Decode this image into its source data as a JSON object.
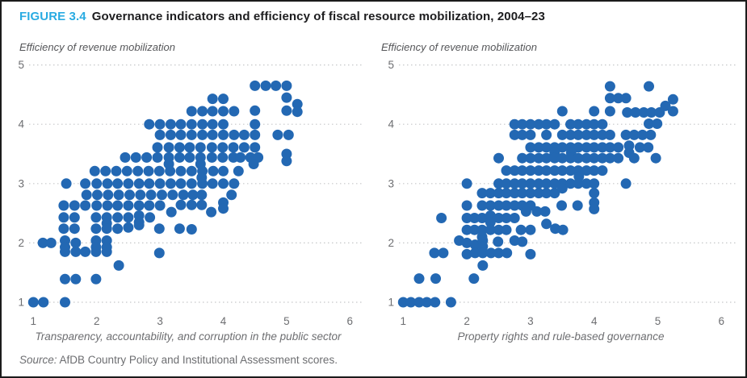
{
  "figure": {
    "label": "FIGURE 3.4",
    "title": "Governance indicators and efficiency of fiscal resource mobilization, 2004–23"
  },
  "source": {
    "prefix": "Source:",
    "text": " AfDB Country Policy and Institutional Assessment scores."
  },
  "colors": {
    "dot": "#2368b3",
    "figure_label": "#29abe2",
    "title_text": "#1d1d1f",
    "axis_text": "#6d6e71",
    "gridline": "#c6c7c9"
  },
  "chart_data": [
    {
      "type": "scatter",
      "ylabel": "Efficiency of revenue mobilization",
      "xlabel": "Transparency, accountability, and corruption in the public sector",
      "xlim": [
        1,
        6
      ],
      "ylim": [
        1,
        5
      ],
      "x_ticks": [
        "1",
        "2",
        "3",
        "4",
        "5",
        "6"
      ],
      "y_ticks": [
        "1",
        "2",
        "3",
        "4",
        "5"
      ],
      "grid": "horizontal-dotted",
      "legend": "none",
      "points": [
        [
          4.5,
          4.65
        ],
        [
          4.67,
          4.65
        ],
        [
          4.83,
          4.65
        ],
        [
          5.0,
          4.65
        ],
        [
          3.83,
          4.43
        ],
        [
          4.0,
          4.43
        ],
        [
          5.0,
          4.45
        ],
        [
          5.17,
          4.34
        ],
        [
          3.5,
          4.22
        ],
        [
          3.67,
          4.22
        ],
        [
          3.83,
          4.22
        ],
        [
          4.0,
          4.22
        ],
        [
          4.17,
          4.22
        ],
        [
          4.5,
          4.23
        ],
        [
          5.0,
          4.23
        ],
        [
          5.17,
          4.21
        ],
        [
          2.83,
          4.0
        ],
        [
          3.0,
          4.0
        ],
        [
          3.17,
          4.0
        ],
        [
          3.33,
          4.0
        ],
        [
          3.5,
          4.0
        ],
        [
          3.67,
          4.0
        ],
        [
          3.83,
          4.0
        ],
        [
          4.0,
          4.0
        ],
        [
          4.5,
          4.0
        ],
        [
          3.0,
          3.82
        ],
        [
          3.17,
          3.82
        ],
        [
          3.33,
          3.82
        ],
        [
          3.5,
          3.82
        ],
        [
          3.67,
          3.82
        ],
        [
          3.83,
          3.82
        ],
        [
          4.0,
          3.82
        ],
        [
          4.17,
          3.82
        ],
        [
          4.33,
          3.82
        ],
        [
          4.5,
          3.82
        ],
        [
          4.86,
          3.82
        ],
        [
          5.03,
          3.82
        ],
        [
          2.96,
          3.61
        ],
        [
          3.14,
          3.61
        ],
        [
          3.31,
          3.61
        ],
        [
          3.47,
          3.61
        ],
        [
          3.64,
          3.61
        ],
        [
          3.82,
          3.61
        ],
        [
          3.99,
          3.61
        ],
        [
          4.16,
          3.61
        ],
        [
          4.33,
          3.61
        ],
        [
          4.5,
          3.61
        ],
        [
          2.45,
          3.44
        ],
        [
          2.62,
          3.44
        ],
        [
          2.79,
          3.44
        ],
        [
          2.96,
          3.44
        ],
        [
          3.14,
          3.44
        ],
        [
          3.31,
          3.44
        ],
        [
          3.47,
          3.44
        ],
        [
          3.64,
          3.44
        ],
        [
          3.82,
          3.44
        ],
        [
          3.99,
          3.44
        ],
        [
          4.16,
          3.44
        ],
        [
          4.27,
          3.44
        ],
        [
          4.43,
          3.44
        ],
        [
          4.55,
          3.44
        ],
        [
          5.0,
          3.5
        ],
        [
          3.14,
          3.33
        ],
        [
          3.64,
          3.33
        ],
        [
          4.48,
          3.33
        ],
        [
          5.0,
          3.38
        ],
        [
          1.97,
          3.21
        ],
        [
          2.14,
          3.21
        ],
        [
          2.31,
          3.21
        ],
        [
          2.48,
          3.21
        ],
        [
          2.65,
          3.21
        ],
        [
          2.82,
          3.21
        ],
        [
          2.99,
          3.21
        ],
        [
          3.16,
          3.21
        ],
        [
          3.33,
          3.21
        ],
        [
          3.5,
          3.21
        ],
        [
          3.67,
          3.21
        ],
        [
          3.84,
          3.21
        ],
        [
          4.0,
          3.21
        ],
        [
          4.24,
          3.21
        ],
        [
          1.52,
          3.0
        ],
        [
          1.82,
          3.0
        ],
        [
          2.0,
          3.0
        ],
        [
          2.17,
          3.0
        ],
        [
          2.33,
          3.0
        ],
        [
          2.5,
          3.0
        ],
        [
          2.67,
          3.0
        ],
        [
          2.83,
          3.0
        ],
        [
          3.0,
          3.0
        ],
        [
          3.17,
          3.0
        ],
        [
          3.33,
          3.0
        ],
        [
          3.5,
          3.0
        ],
        [
          3.67,
          3.0
        ],
        [
          3.83,
          3.0
        ],
        [
          4.0,
          3.0
        ],
        [
          4.17,
          3.0
        ],
        [
          3.66,
          3.1
        ],
        [
          1.84,
          2.81
        ],
        [
          2.01,
          2.81
        ],
        [
          2.18,
          2.81
        ],
        [
          2.35,
          2.81
        ],
        [
          2.52,
          2.81
        ],
        [
          2.69,
          2.81
        ],
        [
          2.86,
          2.81
        ],
        [
          3.03,
          2.81
        ],
        [
          3.2,
          2.81
        ],
        [
          3.37,
          2.81
        ],
        [
          3.52,
          2.81
        ],
        [
          3.66,
          2.81
        ],
        [
          4.13,
          2.81
        ],
        [
          1.48,
          2.63
        ],
        [
          1.65,
          2.63
        ],
        [
          1.82,
          2.63
        ],
        [
          2.0,
          2.63
        ],
        [
          2.17,
          2.63
        ],
        [
          2.33,
          2.63
        ],
        [
          2.5,
          2.63
        ],
        [
          2.67,
          2.63
        ],
        [
          2.83,
          2.63
        ],
        [
          3.0,
          2.63
        ],
        [
          3.33,
          2.64
        ],
        [
          3.5,
          2.64
        ],
        [
          3.66,
          2.64
        ],
        [
          4.0,
          2.68
        ],
        [
          3.18,
          2.52
        ],
        [
          3.81,
          2.52
        ],
        [
          4.0,
          2.58
        ],
        [
          1.48,
          2.43
        ],
        [
          1.65,
          2.43
        ],
        [
          1.99,
          2.43
        ],
        [
          2.16,
          2.43
        ],
        [
          2.33,
          2.43
        ],
        [
          2.5,
          2.43
        ],
        [
          2.67,
          2.46
        ],
        [
          2.84,
          2.43
        ],
        [
          2.67,
          2.35
        ],
        [
          1.48,
          2.24
        ],
        [
          1.65,
          2.24
        ],
        [
          1.99,
          2.24
        ],
        [
          2.16,
          2.33
        ],
        [
          2.16,
          2.24
        ],
        [
          2.33,
          2.24
        ],
        [
          2.5,
          2.26
        ],
        [
          2.67,
          2.3
        ],
        [
          2.99,
          2.24
        ],
        [
          3.31,
          2.24
        ],
        [
          3.5,
          2.23
        ],
        [
          1.15,
          2.0
        ],
        [
          1.28,
          2.0
        ],
        [
          1.5,
          2.04
        ],
        [
          1.67,
          2.0
        ],
        [
          1.99,
          2.04
        ],
        [
          2.16,
          2.04
        ],
        [
          1.5,
          1.93
        ],
        [
          1.99,
          1.93
        ],
        [
          2.16,
          1.93
        ],
        [
          1.5,
          1.85
        ],
        [
          1.67,
          1.85
        ],
        [
          1.82,
          1.85
        ],
        [
          1.99,
          1.85
        ],
        [
          2.16,
          1.85
        ],
        [
          2.99,
          1.83
        ],
        [
          2.35,
          1.62
        ],
        [
          1.5,
          1.39
        ],
        [
          1.67,
          1.39
        ],
        [
          1.99,
          1.39
        ],
        [
          1.0,
          1.0
        ],
        [
          1.16,
          1.0
        ],
        [
          1.5,
          1.0
        ]
      ]
    },
    {
      "type": "scatter",
      "ylabel": "Efficiency of revenue mobilization",
      "xlabel": "Property rights and rule-based governance",
      "xlim": [
        1,
        6
      ],
      "ylim": [
        1,
        5
      ],
      "x_ticks": [
        "1",
        "2",
        "3",
        "4",
        "5",
        "6"
      ],
      "y_ticks": [
        "1",
        "2",
        "3",
        "4",
        "5"
      ],
      "grid": "horizontal-dotted",
      "legend": "none",
      "points": [
        [
          4.25,
          4.64
        ],
        [
          4.86,
          4.64
        ],
        [
          4.25,
          4.44
        ],
        [
          4.38,
          4.44
        ],
        [
          4.5,
          4.44
        ],
        [
          5.24,
          4.42
        ],
        [
          5.12,
          4.31
        ],
        [
          3.5,
          4.22
        ],
        [
          4.0,
          4.22
        ],
        [
          4.25,
          4.22
        ],
        [
          4.52,
          4.2
        ],
        [
          4.65,
          4.2
        ],
        [
          4.78,
          4.2
        ],
        [
          4.9,
          4.2
        ],
        [
          5.03,
          4.2
        ],
        [
          5.24,
          4.22
        ],
        [
          2.75,
          4.0
        ],
        [
          2.87,
          4.0
        ],
        [
          3.0,
          4.0
        ],
        [
          3.13,
          4.0
        ],
        [
          3.25,
          4.0
        ],
        [
          3.38,
          4.0
        ],
        [
          3.63,
          4.0
        ],
        [
          3.75,
          4.0
        ],
        [
          3.88,
          4.0
        ],
        [
          4.0,
          4.0
        ],
        [
          4.13,
          4.0
        ],
        [
          4.86,
          4.01
        ],
        [
          4.99,
          4.01
        ],
        [
          2.75,
          3.82
        ],
        [
          2.87,
          3.82
        ],
        [
          3.0,
          3.82
        ],
        [
          3.25,
          3.82
        ],
        [
          3.5,
          3.82
        ],
        [
          3.63,
          3.82
        ],
        [
          3.75,
          3.82
        ],
        [
          3.88,
          3.82
        ],
        [
          4.0,
          3.82
        ],
        [
          4.13,
          3.82
        ],
        [
          4.25,
          3.82
        ],
        [
          4.5,
          3.82
        ],
        [
          4.63,
          3.82
        ],
        [
          4.76,
          3.82
        ],
        [
          4.89,
          3.82
        ],
        [
          3.0,
          3.61
        ],
        [
          3.13,
          3.61
        ],
        [
          3.25,
          3.61
        ],
        [
          3.38,
          3.61
        ],
        [
          3.5,
          3.61
        ],
        [
          3.63,
          3.61
        ],
        [
          3.75,
          3.61
        ],
        [
          3.88,
          3.61
        ],
        [
          4.0,
          3.61
        ],
        [
          4.13,
          3.61
        ],
        [
          4.25,
          3.61
        ],
        [
          4.38,
          3.61
        ],
        [
          4.55,
          3.64
        ],
        [
          4.72,
          3.61
        ],
        [
          4.85,
          3.61
        ],
        [
          3.38,
          3.52
        ],
        [
          3.64,
          3.52
        ],
        [
          4.55,
          3.52
        ],
        [
          2.5,
          3.43
        ],
        [
          2.87,
          3.43
        ],
        [
          3.0,
          3.43
        ],
        [
          3.13,
          3.43
        ],
        [
          3.25,
          3.43
        ],
        [
          3.38,
          3.43
        ],
        [
          3.5,
          3.43
        ],
        [
          3.63,
          3.43
        ],
        [
          3.75,
          3.43
        ],
        [
          3.88,
          3.43
        ],
        [
          4.0,
          3.43
        ],
        [
          4.13,
          3.43
        ],
        [
          4.25,
          3.43
        ],
        [
          4.38,
          3.43
        ],
        [
          4.63,
          3.43
        ],
        [
          4.97,
          3.43
        ],
        [
          2.62,
          3.22
        ],
        [
          2.75,
          3.22
        ],
        [
          2.87,
          3.22
        ],
        [
          3.0,
          3.22
        ],
        [
          3.13,
          3.22
        ],
        [
          3.25,
          3.22
        ],
        [
          3.38,
          3.22
        ],
        [
          3.5,
          3.22
        ],
        [
          3.63,
          3.22
        ],
        [
          3.75,
          3.22
        ],
        [
          3.88,
          3.22
        ],
        [
          4.0,
          3.22
        ],
        [
          4.13,
          3.22
        ],
        [
          3.76,
          3.12
        ],
        [
          2.0,
          3.0
        ],
        [
          2.5,
          3.0
        ],
        [
          2.62,
          3.0
        ],
        [
          2.75,
          3.0
        ],
        [
          2.87,
          3.0
        ],
        [
          3.0,
          3.0
        ],
        [
          3.13,
          3.0
        ],
        [
          3.25,
          3.0
        ],
        [
          3.38,
          3.0
        ],
        [
          3.5,
          3.0
        ],
        [
          3.63,
          3.0
        ],
        [
          3.75,
          3.0
        ],
        [
          3.88,
          3.0
        ],
        [
          4.0,
          3.0
        ],
        [
          4.5,
          3.0
        ],
        [
          2.24,
          2.84
        ],
        [
          2.37,
          2.84
        ],
        [
          2.5,
          2.84
        ],
        [
          2.62,
          2.84
        ],
        [
          2.75,
          2.84
        ],
        [
          2.87,
          2.84
        ],
        [
          3.0,
          2.84
        ],
        [
          3.13,
          2.84
        ],
        [
          3.25,
          2.84
        ],
        [
          3.38,
          2.84
        ],
        [
          4.0,
          2.84
        ],
        [
          3.5,
          2.92
        ],
        [
          2.0,
          2.63
        ],
        [
          2.24,
          2.63
        ],
        [
          2.37,
          2.63
        ],
        [
          2.5,
          2.63
        ],
        [
          2.62,
          2.63
        ],
        [
          2.75,
          2.63
        ],
        [
          2.87,
          2.63
        ],
        [
          3.0,
          2.63
        ],
        [
          3.49,
          2.63
        ],
        [
          3.74,
          2.63
        ],
        [
          4.0,
          2.68
        ],
        [
          4.0,
          2.57
        ],
        [
          2.93,
          2.53
        ],
        [
          3.1,
          2.53
        ],
        [
          3.23,
          2.53
        ],
        [
          1.6,
          2.42
        ],
        [
          2.0,
          2.42
        ],
        [
          2.12,
          2.42
        ],
        [
          2.24,
          2.42
        ],
        [
          2.37,
          2.46
        ],
        [
          2.5,
          2.42
        ],
        [
          2.62,
          2.42
        ],
        [
          2.75,
          2.42
        ],
        [
          2.37,
          2.35
        ],
        [
          3.25,
          2.32
        ],
        [
          2.0,
          2.22
        ],
        [
          2.12,
          2.22
        ],
        [
          2.24,
          2.22
        ],
        [
          2.37,
          2.22
        ],
        [
          2.5,
          2.22
        ],
        [
          2.62,
          2.22
        ],
        [
          2.85,
          2.22
        ],
        [
          3.0,
          2.22
        ],
        [
          3.39,
          2.24
        ],
        [
          3.51,
          2.22
        ],
        [
          2.24,
          2.1
        ],
        [
          1.88,
          2.04
        ],
        [
          2.0,
          2.0
        ],
        [
          2.13,
          1.97
        ],
        [
          2.25,
          2.04
        ],
        [
          2.49,
          2.02
        ],
        [
          2.75,
          2.04
        ],
        [
          2.87,
          2.02
        ],
        [
          2.25,
          1.94
        ],
        [
          1.49,
          1.83
        ],
        [
          1.63,
          1.83
        ],
        [
          2.0,
          1.81
        ],
        [
          2.13,
          1.83
        ],
        [
          2.25,
          1.83
        ],
        [
          2.38,
          1.83
        ],
        [
          2.5,
          1.83
        ],
        [
          2.63,
          1.83
        ],
        [
          3.0,
          1.81
        ],
        [
          2.25,
          1.62
        ],
        [
          1.25,
          1.4
        ],
        [
          1.51,
          1.4
        ],
        [
          2.11,
          1.4
        ],
        [
          1.0,
          1.0
        ],
        [
          1.12,
          1.0
        ],
        [
          1.25,
          1.0
        ],
        [
          1.37,
          1.0
        ],
        [
          1.5,
          1.0
        ],
        [
          1.75,
          1.0
        ]
      ]
    }
  ]
}
